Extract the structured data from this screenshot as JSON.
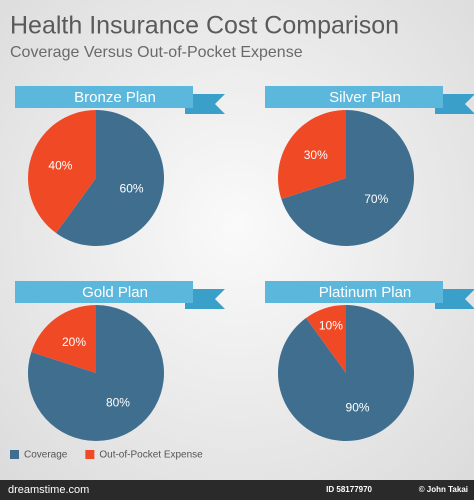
{
  "header": {
    "title": "Health Insurance Cost Comparison",
    "subtitle": "Coverage Versus Out-of-Pocket Expense"
  },
  "chart_data": [
    {
      "type": "pie",
      "title": "Bronze Plan",
      "categories": [
        "Coverage",
        "Out-of-Pocket Expense"
      ],
      "values": [
        60,
        40
      ],
      "value_labels": [
        "60%",
        "40%"
      ],
      "colors": [
        "#3f6e8f",
        "#ef4a25"
      ]
    },
    {
      "type": "pie",
      "title": "Silver Plan",
      "categories": [
        "Coverage",
        "Out-of-Pocket Expense"
      ],
      "values": [
        70,
        30
      ],
      "value_labels": [
        "70%",
        "30%"
      ],
      "colors": [
        "#3f6e8f",
        "#ef4a25"
      ]
    },
    {
      "type": "pie",
      "title": "Gold Plan",
      "categories": [
        "Coverage",
        "Out-of-Pocket Expense"
      ],
      "values": [
        80,
        20
      ],
      "value_labels": [
        "80%",
        "20%"
      ],
      "colors": [
        "#3f6e8f",
        "#ef4a25"
      ]
    },
    {
      "type": "pie",
      "title": "Platinum Plan",
      "categories": [
        "Coverage",
        "Out-of-Pocket Expense"
      ],
      "values": [
        90,
        10
      ],
      "value_labels": [
        "90%",
        "10%"
      ],
      "colors": [
        "#3f6e8f",
        "#ef4a25"
      ]
    }
  ],
  "footer": {
    "site": "dreamstime.com",
    "id": "ID 58177970",
    "credit": "© John Takai"
  }
}
